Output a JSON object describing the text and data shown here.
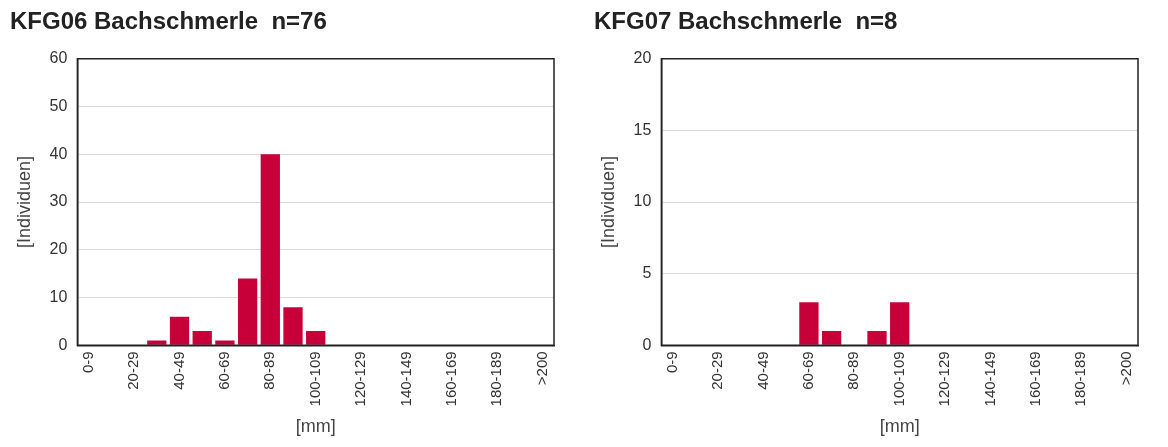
{
  "chart_data": [
    {
      "type": "bar",
      "title": "KFG06 Bachschmerle  n=76",
      "xlabel": "[mm]",
      "ylabel": "[Individuen]",
      "categories": [
        "0-9",
        null,
        "20-29",
        null,
        "40-49",
        null,
        "60-69",
        null,
        "80-89",
        null,
        "100-109",
        null,
        "120-129",
        null,
        "140-149",
        null,
        "160-169",
        null,
        "180-189",
        null,
        ">200"
      ],
      "values": [
        0,
        0,
        0,
        1,
        6,
        3,
        1,
        14,
        40,
        8,
        3,
        0,
        0,
        0,
        0,
        0,
        0,
        0,
        0,
        0,
        0
      ],
      "color": "#c8003a",
      "ylim": [
        0,
        60
      ],
      "yticks": [
        0,
        10,
        20,
        30,
        40,
        50,
        60
      ],
      "grid": "y",
      "legend": false
    },
    {
      "type": "bar",
      "title": "KFG07 Bachschmerle  n=8",
      "xlabel": "[mm]",
      "ylabel": "[Individuen]",
      "categories": [
        "0-9",
        null,
        "20-29",
        null,
        "40-49",
        null,
        "60-69",
        null,
        "80-89",
        null,
        "100-109",
        null,
        "120-129",
        null,
        "140-149",
        null,
        "160-169",
        null,
        "180-189",
        null,
        ">200"
      ],
      "values": [
        0,
        0,
        0,
        0,
        0,
        0,
        3,
        1,
        0,
        1,
        3,
        0,
        0,
        0,
        0,
        0,
        0,
        0,
        0,
        0,
        0
      ],
      "color": "#c8003a",
      "ylim": [
        0,
        20
      ],
      "yticks": [
        0,
        5,
        10,
        15,
        20
      ],
      "grid": "y",
      "legend": false
    }
  ]
}
